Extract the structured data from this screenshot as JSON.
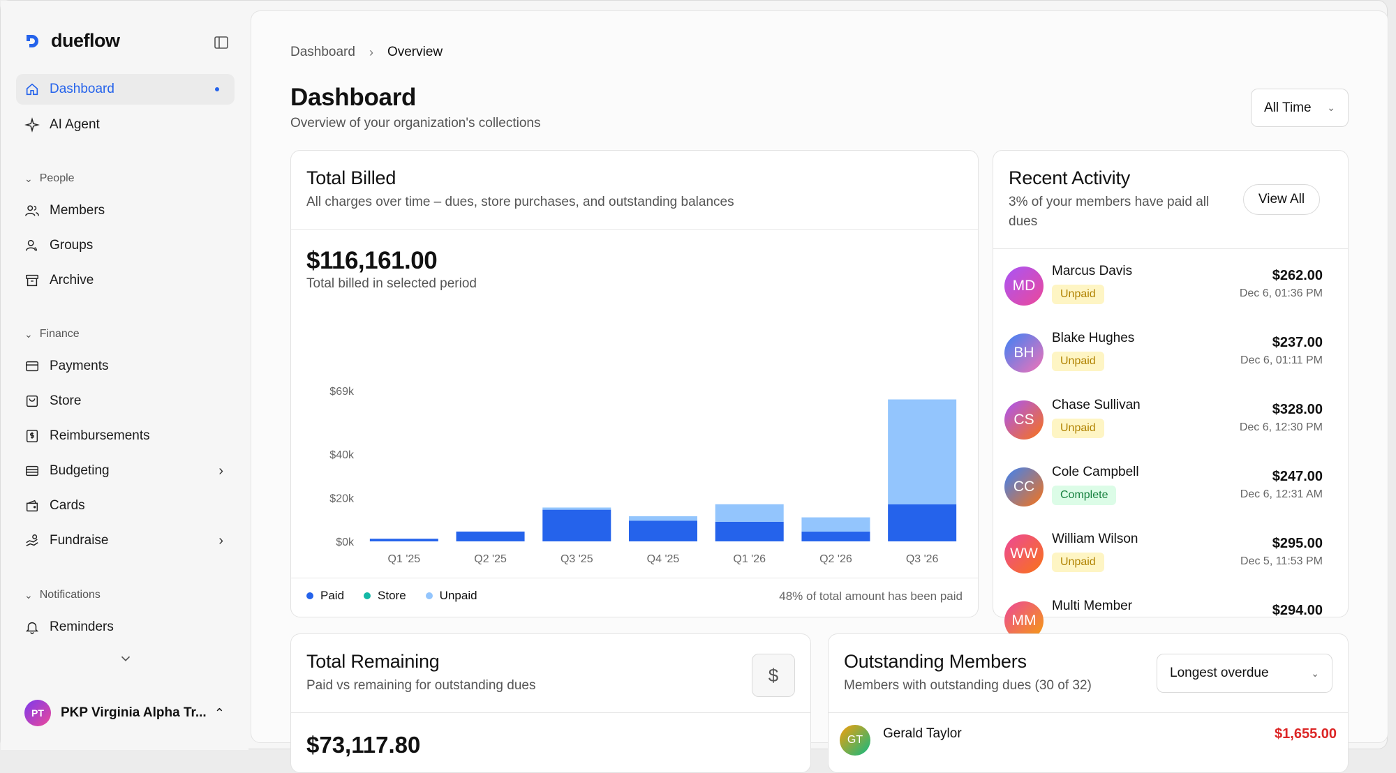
{
  "app": {
    "name": "dueflow",
    "accent": "#2563eb"
  },
  "sidebar": {
    "primary": [
      {
        "label": "Dashboard",
        "icon": "home-icon",
        "active": true
      },
      {
        "label": "AI Agent",
        "icon": "sparkles-icon"
      }
    ],
    "sections": [
      {
        "label": "People",
        "items": [
          {
            "label": "Members",
            "icon": "users-icon"
          },
          {
            "label": "Groups",
            "icon": "user-group-icon"
          },
          {
            "label": "Archive",
            "icon": "archive-icon"
          }
        ]
      },
      {
        "label": "Finance",
        "items": [
          {
            "label": "Payments",
            "icon": "credit-card-icon"
          },
          {
            "label": "Store",
            "icon": "shopping-bag-icon"
          },
          {
            "label": "Reimbursements",
            "icon": "receipt-icon"
          },
          {
            "label": "Budgeting",
            "icon": "wallet-icon"
          },
          {
            "label": "Cards",
            "icon": "card-icon"
          },
          {
            "label": "Fundraise",
            "icon": "hand-coins-icon"
          }
        ]
      },
      {
        "label": "Notifications",
        "items": [
          {
            "label": "Reminders",
            "icon": "bell-icon"
          }
        ]
      }
    ],
    "org": {
      "initials": "PT",
      "name": "PKP Virginia Alpha Tr..."
    }
  },
  "breadcrumb": {
    "root": "Dashboard",
    "current": "Overview"
  },
  "header": {
    "title": "Dashboard",
    "subtitle": "Overview of your organization's collections",
    "time_filter": "All Time"
  },
  "total_billed": {
    "title": "Total Billed",
    "subtitle": "All charges over time – dues, store purchases, and outstanding balances",
    "amount": "$116,161.00",
    "amount_caption": "Total billed in selected period",
    "legend": [
      "Paid",
      "Store",
      "Unpaid"
    ],
    "note": "48% of total amount has been paid"
  },
  "chart_data": {
    "type": "bar",
    "stacked": true,
    "categories": [
      "Q1 '25",
      "Q2 '25",
      "Q3 '25",
      "Q4 '25",
      "Q1 '26",
      "Q2 '26",
      "Q3 '26"
    ],
    "series": [
      {
        "name": "Paid",
        "color": "#2563eb",
        "values": [
          1200,
          4500,
          14500,
          9500,
          9000,
          4500,
          17000
        ]
      },
      {
        "name": "Store",
        "color": "#14b8a6",
        "values": [
          0,
          0,
          0,
          0,
          0,
          0,
          0
        ]
      },
      {
        "name": "Unpaid",
        "color": "#93c5fd",
        "values": [
          0,
          0,
          1000,
          2000,
          8000,
          6500,
          48000
        ]
      }
    ],
    "yticks": [
      0,
      20000,
      40000,
      69000
    ],
    "ytick_labels": [
      "$0k",
      "$20k",
      "$40k",
      "$69k"
    ],
    "ylim": [
      0,
      69000
    ],
    "grid": false,
    "legend_position": "bottom-left"
  },
  "recent_activity": {
    "title": "Recent Activity",
    "subtitle": "3% of your members have paid all dues",
    "view_all": "View All",
    "items": [
      {
        "initials": "MD",
        "name": "Marcus Davis",
        "status": "Unpaid",
        "amount": "$262.00",
        "date": "Dec 6, 01:36 PM",
        "grad": [
          "#a855f7",
          "#ec4899"
        ]
      },
      {
        "initials": "BH",
        "name": "Blake Hughes",
        "status": "Unpaid",
        "amount": "$237.00",
        "date": "Dec 6, 01:11 PM",
        "grad": [
          "#3b82f6",
          "#f472b6"
        ]
      },
      {
        "initials": "CS",
        "name": "Chase Sullivan",
        "status": "Unpaid",
        "amount": "$328.00",
        "date": "Dec 6, 12:30 PM",
        "grad": [
          "#a855f7",
          "#f97316"
        ]
      },
      {
        "initials": "CC",
        "name": "Cole Campbell",
        "status": "Complete",
        "amount": "$247.00",
        "date": "Dec 6, 12:31 AM",
        "grad": [
          "#3b82f6",
          "#f97316"
        ]
      },
      {
        "initials": "WW",
        "name": "William Wilson",
        "status": "Unpaid",
        "amount": "$295.00",
        "date": "Dec 5, 11:53 PM",
        "grad": [
          "#ec4899",
          "#f97316"
        ]
      },
      {
        "initials": "MM",
        "name": "Multi Member",
        "status": "",
        "amount": "$294.00",
        "date": "",
        "grad": [
          "#ec4899",
          "#f59e0b"
        ]
      }
    ]
  },
  "total_remaining": {
    "title": "Total Remaining",
    "subtitle": "Paid vs remaining for outstanding dues",
    "amount": "$73,117.80",
    "icon": "dollar-icon"
  },
  "outstanding": {
    "title": "Outstanding Members",
    "subtitle": "Members with outstanding dues (30 of 32)",
    "sort": "Longest overdue",
    "first": {
      "initials": "GT",
      "name": "Gerald Taylor",
      "amount": "$1,655.00"
    }
  }
}
